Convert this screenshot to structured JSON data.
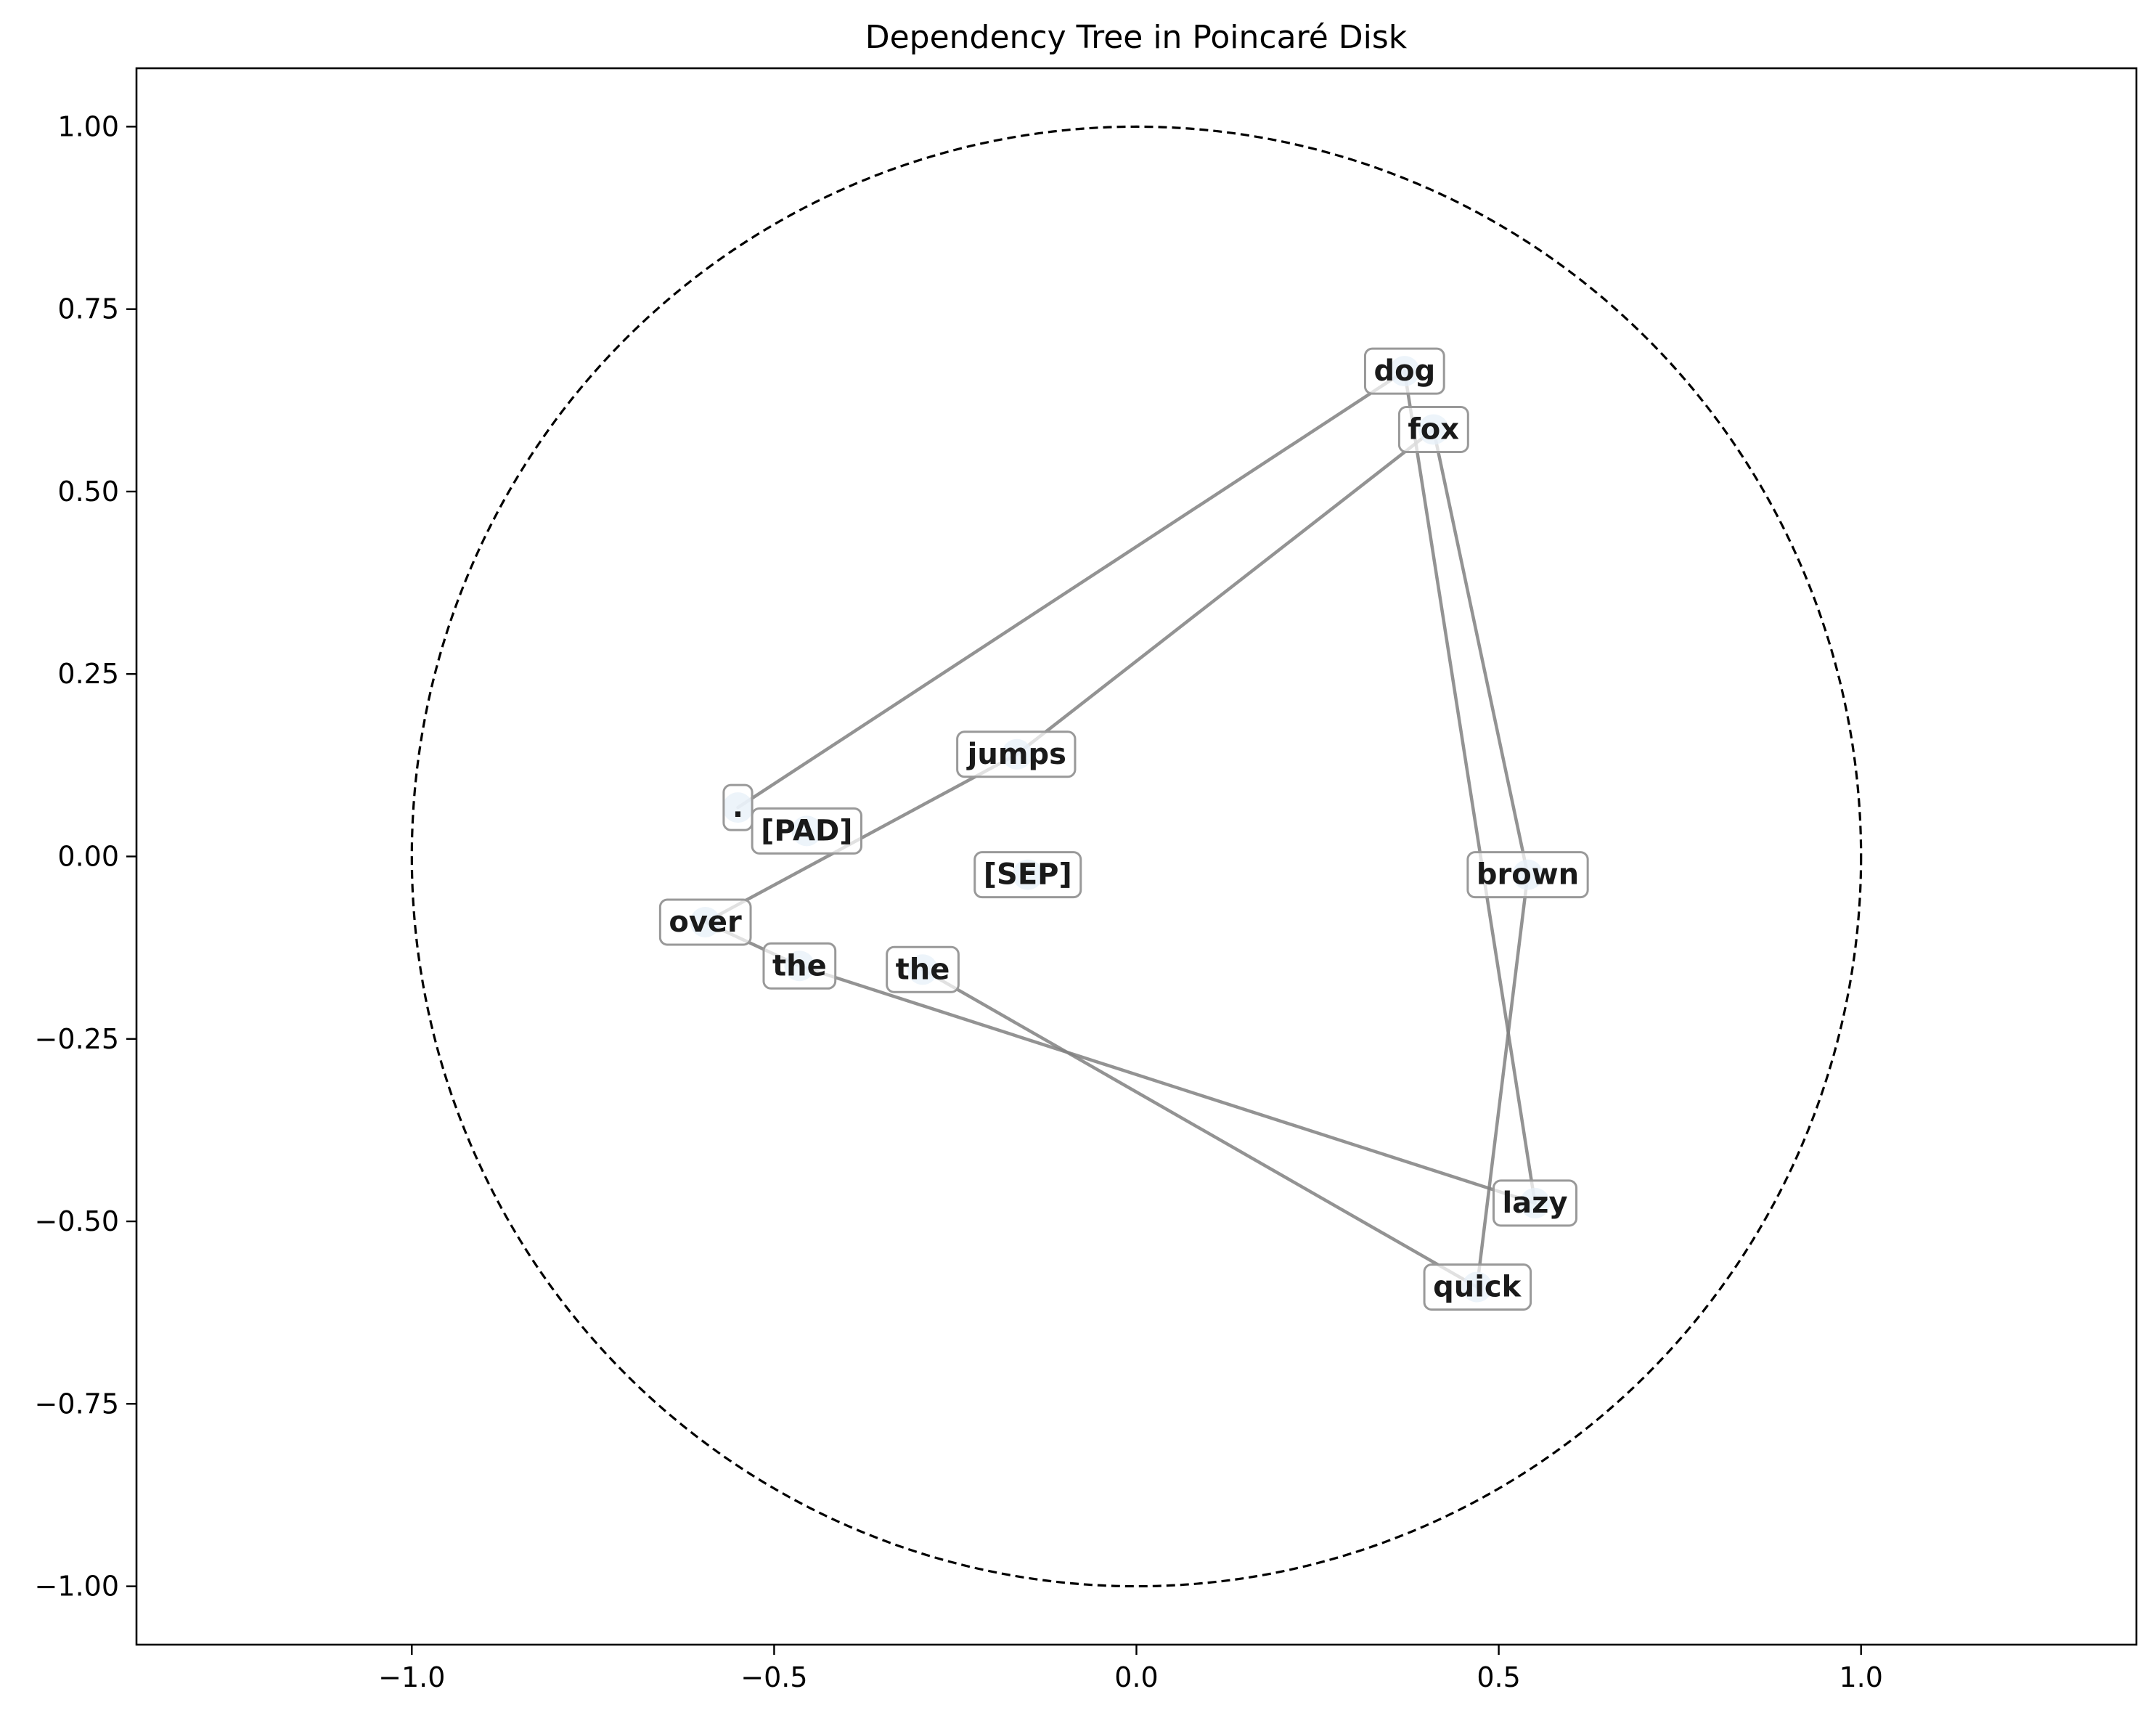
{
  "chart_data": {
    "type": "scatter",
    "title": "Dependency Tree in Poincaré Disk",
    "xlabel": "",
    "ylabel": "",
    "xlim": [
      -1.38,
      1.38
    ],
    "ylim": [
      -1.08,
      1.08
    ],
    "xticks": [
      -1.0,
      -0.5,
      0.0,
      0.5,
      1.0
    ],
    "xtick_labels": [
      "−1.0",
      "−0.5",
      "0.0",
      "0.5",
      "1.0"
    ],
    "yticks": [
      1.0,
      0.75,
      0.5,
      0.25,
      0.0,
      -0.25,
      -0.5,
      -0.75,
      -1.0
    ],
    "ytick_labels": [
      "1.00",
      "0.75",
      "0.50",
      "0.25",
      "0.00",
      "−0.25",
      "−0.50",
      "−0.75",
      "−1.00"
    ],
    "grid": false,
    "boundary_circle": {
      "center": [
        0,
        0
      ],
      "radius": 1.0,
      "style": "dashed"
    },
    "colors": {
      "node": "#a8c8e8",
      "edge": "#808080",
      "boundary": "#000000",
      "label_border": "#999999"
    },
    "nodes": [
      {
        "label": "dog",
        "x": 0.37,
        "y": 0.665
      },
      {
        "label": "fox",
        "x": 0.41,
        "y": 0.585
      },
      {
        "label": "jumps",
        "x": -0.165,
        "y": 0.14
      },
      {
        "label": ".",
        "x": -0.55,
        "y": 0.067
      },
      {
        "label": "[PAD]",
        "x": -0.455,
        "y": 0.035
      },
      {
        "label": "[SEP]",
        "x": -0.15,
        "y": -0.025
      },
      {
        "label": "brown",
        "x": 0.54,
        "y": -0.025
      },
      {
        "label": "over",
        "x": -0.595,
        "y": -0.09
      },
      {
        "label": "the",
        "x": -0.465,
        "y": -0.15
      },
      {
        "label": "the",
        "x": -0.295,
        "y": -0.155
      },
      {
        "label": "lazy",
        "x": 0.55,
        "y": -0.475
      },
      {
        "label": "quick",
        "x": 0.47,
        "y": -0.59
      }
    ],
    "edges": [
      [
        3,
        0
      ],
      [
        0,
        10
      ],
      [
        1,
        2
      ],
      [
        2,
        7
      ],
      [
        7,
        8
      ],
      [
        8,
        10
      ],
      [
        1,
        6
      ],
      [
        6,
        11
      ],
      [
        11,
        9
      ]
    ]
  }
}
